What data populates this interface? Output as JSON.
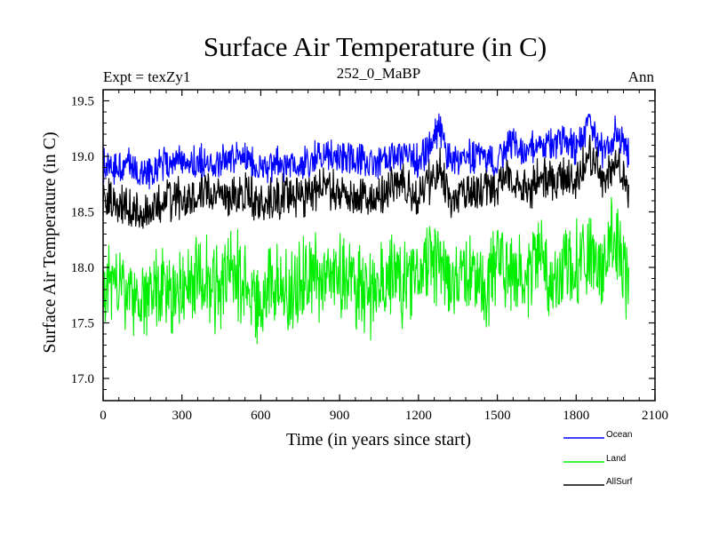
{
  "chart_data": {
    "type": "line",
    "title": "Surface Air Temperature (in C)",
    "subtitle_left": "Expt = texZy1",
    "subtitle_center": "252_0_MaBP",
    "subtitle_right": "Ann",
    "xlabel": "Time (in years since start)",
    "ylabel": "Surface Air Temperature (in C)",
    "xlim": [
      0,
      2100
    ],
    "ylim": [
      16.8,
      19.6
    ],
    "xticks": [
      0,
      300,
      600,
      900,
      1200,
      1500,
      1800,
      2100
    ],
    "yticks": [
      17.0,
      17.5,
      18.0,
      18.5,
      19.0,
      19.5
    ],
    "xtick_labels": [
      "0",
      "300",
      "600",
      "900",
      "1200",
      "1500",
      "1800",
      "2100"
    ],
    "ytick_labels": [
      "17.0",
      "17.5",
      "18.0",
      "18.5",
      "19.0",
      "19.5"
    ],
    "legend_position": "bottom-right-outside",
    "series": [
      {
        "name": "Ocean",
        "color": "#0000ff",
        "x": [
          0,
          50,
          100,
          150,
          200,
          250,
          300,
          350,
          400,
          450,
          500,
          550,
          600,
          650,
          700,
          750,
          800,
          850,
          900,
          950,
          1000,
          1050,
          1100,
          1150,
          1200,
          1250,
          1280,
          1300,
          1350,
          1400,
          1450,
          1500,
          1550,
          1600,
          1650,
          1700,
          1750,
          1800,
          1850,
          1900,
          1950,
          2000
        ],
        "values": [
          18.92,
          18.9,
          18.88,
          18.85,
          18.93,
          18.94,
          18.97,
          18.95,
          18.93,
          18.96,
          18.95,
          18.97,
          18.96,
          18.94,
          18.92,
          18.97,
          18.96,
          18.98,
          19.0,
          18.97,
          18.95,
          18.98,
          18.99,
          19.0,
          18.96,
          19.05,
          19.22,
          19.05,
          18.98,
          19.0,
          19.02,
          19.0,
          19.06,
          19.02,
          19.08,
          19.05,
          19.18,
          19.1,
          19.28,
          19.08,
          19.2,
          18.96
        ]
      },
      {
        "name": "Land",
        "color": "#00ee00",
        "x": [
          0,
          50,
          100,
          150,
          200,
          250,
          300,
          350,
          400,
          450,
          500,
          550,
          600,
          650,
          700,
          750,
          800,
          850,
          900,
          950,
          1000,
          1050,
          1100,
          1150,
          1200,
          1250,
          1280,
          1300,
          1350,
          1400,
          1450,
          1500,
          1550,
          1600,
          1650,
          1700,
          1750,
          1800,
          1850,
          1900,
          1950,
          2000
        ],
        "values": [
          17.86,
          17.78,
          17.68,
          17.7,
          17.8,
          17.78,
          17.82,
          17.8,
          17.84,
          17.82,
          17.85,
          17.83,
          17.84,
          17.86,
          17.82,
          17.9,
          17.84,
          17.88,
          17.92,
          17.86,
          17.85,
          17.88,
          17.87,
          17.92,
          17.86,
          17.98,
          18.05,
          17.92,
          17.86,
          17.9,
          17.92,
          17.91,
          17.94,
          17.88,
          17.98,
          17.94,
          18.05,
          17.98,
          18.18,
          18.02,
          18.16,
          17.8
        ]
      },
      {
        "name": "AllSurf",
        "color": "#000000",
        "x": [
          0,
          50,
          100,
          150,
          200,
          250,
          300,
          350,
          400,
          450,
          500,
          550,
          600,
          650,
          700,
          750,
          800,
          850,
          900,
          950,
          1000,
          1050,
          1100,
          1150,
          1200,
          1250,
          1280,
          1300,
          1350,
          1400,
          1450,
          1500,
          1550,
          1600,
          1650,
          1700,
          1750,
          1800,
          1850,
          1900,
          1950,
          2000
        ],
        "values": [
          18.62,
          18.58,
          18.48,
          18.52,
          18.6,
          18.61,
          18.64,
          18.62,
          18.63,
          18.65,
          18.64,
          18.66,
          18.65,
          18.63,
          18.61,
          18.67,
          18.64,
          18.68,
          18.7,
          18.66,
          18.64,
          18.68,
          18.69,
          18.7,
          18.66,
          18.76,
          18.88,
          18.74,
          18.67,
          18.7,
          18.72,
          18.7,
          18.75,
          18.7,
          18.78,
          18.75,
          18.88,
          18.8,
          18.98,
          18.78,
          18.92,
          18.64
        ]
      }
    ]
  }
}
